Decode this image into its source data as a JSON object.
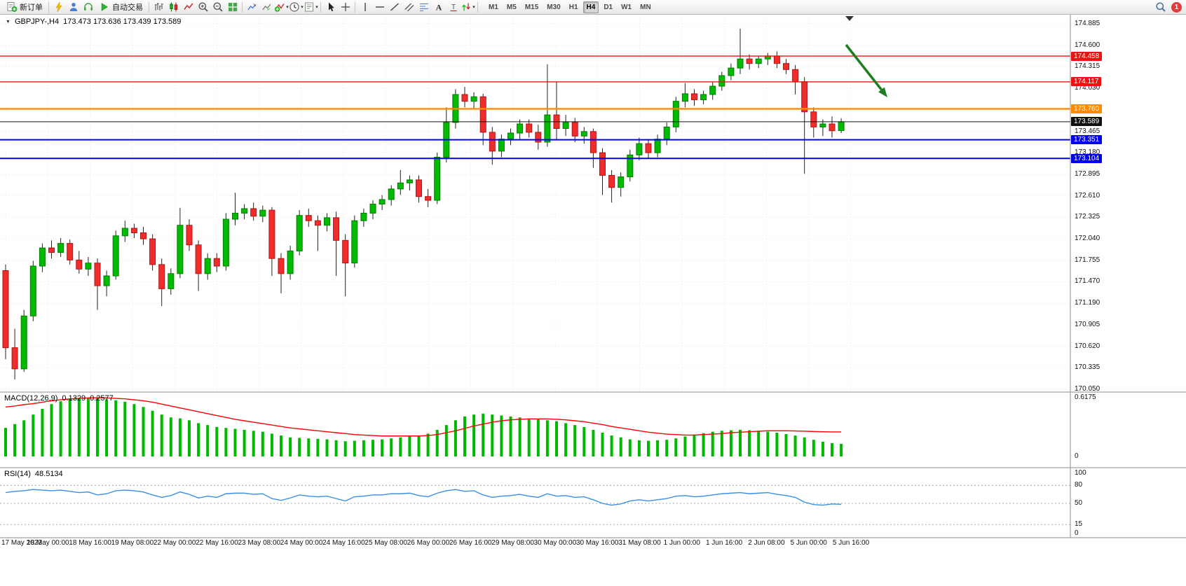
{
  "toolbar": {
    "items": [
      {
        "kind": "button",
        "name": "new-order-button",
        "glyph": "new-order",
        "label": "新订单"
      },
      {
        "kind": "sep"
      },
      {
        "kind": "icon",
        "name": "charts-toolbar-button",
        "glyph": "bolt"
      },
      {
        "kind": "icon",
        "name": "profile-button",
        "glyph": "person"
      },
      {
        "kind": "icon",
        "name": "market-watch-button",
        "glyph": "headset"
      },
      {
        "kind": "button",
        "name": "autotrading-button",
        "glyph": "play",
        "label": "自动交易"
      },
      {
        "kind": "sep"
      },
      {
        "kind": "icon",
        "name": "bar-chart-button",
        "glyph": "bars"
      },
      {
        "kind": "icon",
        "name": "candlestick-chart-button",
        "glyph": "candles"
      },
      {
        "kind": "icon",
        "name": "line-chart-button",
        "glyph": "polyline"
      },
      {
        "kind": "icon",
        "name": "zoom-in-button",
        "glyph": "zoom-in"
      },
      {
        "kind": "icon",
        "name": "zoom-out-button",
        "glyph": "zoom-out"
      },
      {
        "kind": "icon",
        "name": "tile-windows-button",
        "glyph": "grid"
      },
      {
        "kind": "sep"
      },
      {
        "kind": "icon",
        "name": "indicator-window-button",
        "glyph": "chart-arrow"
      },
      {
        "kind": "icon",
        "name": "indicator-list-button",
        "glyph": "chart-arrow2"
      },
      {
        "kind": "icon",
        "name": "add-indicator-button",
        "glyph": "add-ind",
        "dropdown": true
      },
      {
        "kind": "icon",
        "name": "periods-button",
        "glyph": "clock",
        "dropdown": true
      },
      {
        "kind": "icon",
        "name": "templates-button",
        "glyph": "template",
        "dropdown": true
      },
      {
        "kind": "sep"
      },
      {
        "kind": "icon",
        "name": "cursor-button",
        "glyph": "cursor"
      },
      {
        "kind": "icon",
        "name": "crosshair-button",
        "glyph": "crosshair"
      },
      {
        "kind": "sep"
      },
      {
        "kind": "icon",
        "name": "vertical-line-button",
        "glyph": "vline"
      },
      {
        "kind": "icon",
        "name": "horizontal-line-button",
        "glyph": "hline"
      },
      {
        "kind": "icon",
        "name": "trendline-button",
        "glyph": "tline"
      },
      {
        "kind": "icon",
        "name": "channel-button",
        "glyph": "channel"
      },
      {
        "kind": "icon",
        "name": "fibonacci-button",
        "glyph": "fibo"
      },
      {
        "kind": "icon",
        "name": "text-button",
        "glyph": "textA"
      },
      {
        "kind": "icon",
        "name": "text-label-button",
        "glyph": "labelT"
      },
      {
        "kind": "icon",
        "name": "arrows-button",
        "glyph": "arrows",
        "dropdown": true
      },
      {
        "kind": "sep"
      }
    ],
    "timeframes": [
      {
        "label": "M1"
      },
      {
        "label": "M5"
      },
      {
        "label": "M15"
      },
      {
        "label": "M30"
      },
      {
        "label": "H1"
      },
      {
        "label": "H4",
        "active": true
      },
      {
        "label": "D1"
      },
      {
        "label": "W1"
      },
      {
        "label": "MN"
      }
    ],
    "notification_count": "1"
  },
  "chart_data": {
    "type": "candlestick",
    "header_title": "GBPJPY-,H4",
    "header_ohlc": "173.473 173.636 173.439 173.589",
    "y_range": [
      170.05,
      174.885
    ],
    "price_ticks": [
      "174.885",
      "174.600",
      "174.315",
      "174.030",
      "173.745",
      "173.465",
      "173.180",
      "172.895",
      "172.610",
      "172.325",
      "172.040",
      "171.755",
      "171.470",
      "171.190",
      "170.905",
      "170.620",
      "170.335",
      "170.050"
    ],
    "time_labels": [
      "17 May 2023",
      "18 May 00:00",
      "18 May 16:00",
      "19 May 08:00",
      "22 May 00:00",
      "22 May 16:00",
      "23 May 08:00",
      "24 May 00:00",
      "24 May 16:00",
      "25 May 08:00",
      "26 May 00:00",
      "26 May 16:00",
      "29 May 08:00",
      "30 May 00:00",
      "30 May 16:00",
      "31 May 08:00",
      "1 Jun 00:00",
      "1 Jun 16:00",
      "2 Jun 08:00",
      "5 Jun 00:00",
      "5 Jun 16:00"
    ],
    "hlines": [
      {
        "price": 174.458,
        "label": "174.458",
        "color": "#ee1111",
        "thickness": 1.4
      },
      {
        "price": 174.117,
        "label": "174.117",
        "color": "#ee1111",
        "thickness": 1.4
      },
      {
        "price": 173.76,
        "label": "173.760",
        "color": "#ff8a00",
        "thickness": 2.4
      },
      {
        "price": 173.351,
        "label": "173.351",
        "color": "#0000ee",
        "thickness": 2
      },
      {
        "price": 173.104,
        "label": "173.104",
        "color": "#0000ee",
        "thickness": 2
      }
    ],
    "current_price": {
      "value": 173.589,
      "label": "173.589",
      "color": "#111111"
    },
    "arrow_annotation": {
      "color": "#1e7d1e"
    },
    "candles": [
      [
        171.62,
        171.7,
        170.45,
        170.6
      ],
      [
        170.6,
        170.85,
        170.18,
        170.32
      ],
      [
        170.32,
        171.1,
        170.28,
        171.02
      ],
      [
        171.02,
        171.75,
        170.95,
        171.68
      ],
      [
        171.68,
        171.98,
        171.6,
        171.92
      ],
      [
        171.92,
        172.02,
        171.78,
        171.86
      ],
      [
        171.86,
        172.05,
        171.8,
        171.98
      ],
      [
        171.98,
        172.03,
        171.7,
        171.76
      ],
      [
        171.76,
        171.88,
        171.58,
        171.64
      ],
      [
        171.64,
        171.8,
        171.55,
        171.72
      ],
      [
        171.72,
        171.78,
        171.1,
        171.42
      ],
      [
        171.42,
        171.62,
        171.28,
        171.55
      ],
      [
        171.55,
        172.15,
        171.5,
        172.08
      ],
      [
        172.08,
        172.28,
        172.0,
        172.18
      ],
      [
        172.18,
        172.24,
        172.05,
        172.12
      ],
      [
        172.12,
        172.2,
        171.96,
        172.04
      ],
      [
        172.04,
        172.1,
        171.62,
        171.7
      ],
      [
        171.7,
        171.78,
        171.15,
        171.38
      ],
      [
        171.38,
        171.65,
        171.3,
        171.58
      ],
      [
        171.58,
        172.45,
        171.52,
        172.22
      ],
      [
        172.22,
        172.3,
        171.88,
        171.96
      ],
      [
        171.96,
        172.02,
        171.35,
        171.58
      ],
      [
        171.58,
        171.85,
        171.5,
        171.78
      ],
      [
        171.78,
        171.85,
        171.6,
        171.68
      ],
      [
        171.68,
        172.38,
        171.62,
        172.3
      ],
      [
        172.3,
        172.65,
        172.22,
        172.38
      ],
      [
        172.38,
        172.5,
        172.3,
        172.44
      ],
      [
        172.44,
        172.52,
        172.28,
        172.34
      ],
      [
        172.34,
        172.48,
        172.26,
        172.42
      ],
      [
        172.42,
        172.46,
        171.55,
        171.78
      ],
      [
        171.78,
        171.85,
        171.32,
        171.58
      ],
      [
        171.58,
        171.95,
        171.5,
        171.88
      ],
      [
        171.88,
        172.42,
        171.82,
        172.35
      ],
      [
        172.35,
        172.44,
        172.2,
        172.28
      ],
      [
        172.28,
        172.35,
        171.88,
        172.22
      ],
      [
        172.22,
        172.38,
        172.14,
        172.32
      ],
      [
        172.32,
        172.4,
        171.55,
        172.02
      ],
      [
        172.02,
        172.1,
        171.28,
        171.72
      ],
      [
        171.72,
        172.35,
        171.66,
        172.28
      ],
      [
        172.28,
        172.44,
        172.2,
        172.38
      ],
      [
        172.38,
        172.55,
        172.3,
        172.5
      ],
      [
        172.5,
        172.62,
        172.42,
        172.56
      ],
      [
        172.56,
        172.75,
        172.48,
        172.7
      ],
      [
        172.7,
        172.95,
        172.62,
        172.78
      ],
      [
        172.78,
        172.88,
        172.68,
        172.82
      ],
      [
        172.82,
        172.88,
        172.52,
        172.6
      ],
      [
        172.6,
        172.7,
        172.46,
        172.55
      ],
      [
        172.55,
        173.18,
        172.5,
        173.12
      ],
      [
        173.12,
        173.78,
        173.05,
        173.58
      ],
      [
        173.58,
        174.02,
        173.5,
        173.95
      ],
      [
        173.95,
        174.05,
        173.78,
        173.86
      ],
      [
        173.86,
        173.98,
        173.76,
        173.92
      ],
      [
        173.92,
        173.96,
        173.28,
        173.45
      ],
      [
        173.45,
        173.52,
        173.02,
        173.2
      ],
      [
        173.2,
        173.42,
        173.12,
        173.36
      ],
      [
        173.36,
        173.5,
        173.28,
        173.44
      ],
      [
        173.44,
        173.62,
        173.36,
        173.56
      ],
      [
        173.56,
        173.62,
        173.38,
        173.45
      ],
      [
        173.45,
        173.55,
        173.22,
        173.32
      ],
      [
        173.32,
        174.35,
        173.26,
        173.68
      ],
      [
        173.68,
        174.12,
        173.35,
        173.5
      ],
      [
        173.5,
        173.68,
        173.4,
        173.58
      ],
      [
        173.58,
        173.64,
        173.32,
        173.4
      ],
      [
        173.4,
        173.52,
        173.3,
        173.46
      ],
      [
        173.46,
        173.5,
        172.98,
        173.18
      ],
      [
        173.18,
        173.24,
        172.62,
        172.88
      ],
      [
        172.88,
        172.95,
        172.52,
        172.72
      ],
      [
        172.72,
        172.92,
        172.6,
        172.86
      ],
      [
        172.86,
        173.22,
        172.8,
        173.15
      ],
      [
        173.15,
        173.38,
        173.08,
        173.3
      ],
      [
        173.3,
        173.36,
        173.1,
        173.18
      ],
      [
        173.18,
        173.42,
        173.12,
        173.36
      ],
      [
        173.36,
        173.58,
        173.28,
        173.52
      ],
      [
        173.52,
        173.92,
        173.45,
        173.86
      ],
      [
        173.86,
        174.1,
        173.78,
        173.96
      ],
      [
        173.96,
        174.02,
        173.8,
        173.88
      ],
      [
        173.88,
        174.0,
        173.82,
        173.95
      ],
      [
        173.95,
        174.12,
        173.88,
        174.06
      ],
      [
        174.06,
        174.25,
        174.0,
        174.2
      ],
      [
        174.2,
        174.36,
        174.14,
        174.3
      ],
      [
        174.3,
        174.82,
        174.22,
        174.42
      ],
      [
        174.42,
        174.48,
        174.28,
        174.36
      ],
      [
        174.36,
        174.46,
        174.3,
        174.42
      ],
      [
        174.42,
        174.5,
        174.34,
        174.46
      ],
      [
        174.46,
        174.52,
        174.3,
        174.36
      ],
      [
        174.36,
        174.42,
        174.22,
        174.28
      ],
      [
        174.28,
        174.34,
        173.95,
        174.12
      ],
      [
        174.12,
        174.18,
        172.9,
        173.72
      ],
      [
        173.72,
        173.78,
        173.38,
        173.52
      ],
      [
        173.52,
        173.62,
        173.4,
        173.56
      ],
      [
        173.56,
        173.66,
        173.38,
        173.47
      ],
      [
        173.473,
        173.636,
        173.439,
        173.589
      ]
    ],
    "indicators": {
      "macd": {
        "name": "MACD(12,26,9)",
        "value_macd": "0.1329",
        "value_signal": "0.2577",
        "axis": [
          {
            "label": "0.6175",
            "value": 0.6175
          },
          {
            "label": "0",
            "value": 0
          }
        ],
        "hist_color": "#00b800",
        "signal_color": "#ff0000",
        "histogram": [
          0.3,
          0.34,
          0.38,
          0.44,
          0.5,
          0.55,
          0.58,
          0.6,
          0.615,
          0.6175,
          0.615,
          0.6,
          0.59,
          0.575,
          0.55,
          0.52,
          0.48,
          0.44,
          0.41,
          0.4,
          0.38,
          0.35,
          0.33,
          0.31,
          0.3,
          0.29,
          0.28,
          0.27,
          0.26,
          0.24,
          0.22,
          0.2,
          0.195,
          0.19,
          0.185,
          0.18,
          0.17,
          0.16,
          0.165,
          0.17,
          0.175,
          0.18,
          0.19,
          0.2,
          0.21,
          0.22,
          0.24,
          0.28,
          0.33,
          0.38,
          0.42,
          0.44,
          0.45,
          0.44,
          0.43,
          0.42,
          0.41,
          0.4,
          0.39,
          0.38,
          0.37,
          0.35,
          0.33,
          0.31,
          0.28,
          0.25,
          0.22,
          0.2,
          0.18,
          0.17,
          0.165,
          0.17,
          0.175,
          0.19,
          0.21,
          0.23,
          0.245,
          0.26,
          0.27,
          0.275,
          0.28,
          0.275,
          0.27,
          0.26,
          0.25,
          0.235,
          0.22,
          0.2,
          0.175,
          0.155,
          0.14,
          0.1329
        ],
        "signal": [
          0.52,
          0.53,
          0.545,
          0.555,
          0.57,
          0.585,
          0.595,
          0.605,
          0.61,
          0.615,
          0.617,
          0.615,
          0.61,
          0.605,
          0.595,
          0.585,
          0.57,
          0.55,
          0.53,
          0.51,
          0.49,
          0.47,
          0.45,
          0.43,
          0.41,
          0.39,
          0.375,
          0.36,
          0.345,
          0.33,
          0.315,
          0.3,
          0.29,
          0.28,
          0.27,
          0.26,
          0.25,
          0.24,
          0.23,
          0.225,
          0.22,
          0.215,
          0.215,
          0.215,
          0.215,
          0.215,
          0.22,
          0.23,
          0.25,
          0.27,
          0.295,
          0.32,
          0.34,
          0.36,
          0.375,
          0.385,
          0.39,
          0.395,
          0.395,
          0.395,
          0.39,
          0.385,
          0.375,
          0.365,
          0.35,
          0.335,
          0.315,
          0.3,
          0.285,
          0.27,
          0.255,
          0.245,
          0.235,
          0.23,
          0.225,
          0.225,
          0.23,
          0.235,
          0.24,
          0.25,
          0.255,
          0.26,
          0.265,
          0.27,
          0.27,
          0.27,
          0.268,
          0.265,
          0.262,
          0.26,
          0.258,
          0.2577
        ]
      },
      "rsi": {
        "name": "RSI(14)",
        "value": "48.5134",
        "axis": [
          {
            "label": "100",
            "value": 100
          },
          {
            "label": "80",
            "value": 80
          },
          {
            "label": "50",
            "value": 50
          },
          {
            "label": "15",
            "value": 15
          },
          {
            "label": "0",
            "value": 0
          }
        ],
        "levels": [
          80,
          50,
          15
        ],
        "color": "#3a8fe8",
        "values": [
          68,
          70,
          71,
          73,
          72,
          71,
          72,
          70,
          68,
          69,
          64,
          66,
          71,
          72,
          71,
          69,
          64,
          60,
          63,
          69,
          65,
          59,
          62,
          60,
          66,
          67,
          67,
          65,
          66,
          58,
          55,
          59,
          64,
          62,
          61,
          62,
          58,
          54,
          61,
          62,
          64,
          64,
          66,
          66,
          67,
          63,
          61,
          67,
          71,
          73,
          70,
          71,
          64,
          60,
          62,
          63,
          65,
          62,
          60,
          66,
          62,
          63,
          60,
          61,
          56,
          50,
          47,
          49,
          54,
          56,
          54,
          56,
          58,
          62,
          63,
          61,
          62,
          64,
          66,
          67,
          68,
          66,
          67,
          68,
          65,
          63,
          60,
          52,
          48,
          47,
          49,
          48.5
        ]
      }
    }
  },
  "colors": {
    "up": "#00bb00",
    "up_border": "#007d00",
    "down": "#ef2d2d",
    "down_border": "#b31414",
    "wick": "#222222",
    "grid": "#e7e7e7",
    "axis_text": "#111111",
    "separator": "#8c8c8c"
  }
}
